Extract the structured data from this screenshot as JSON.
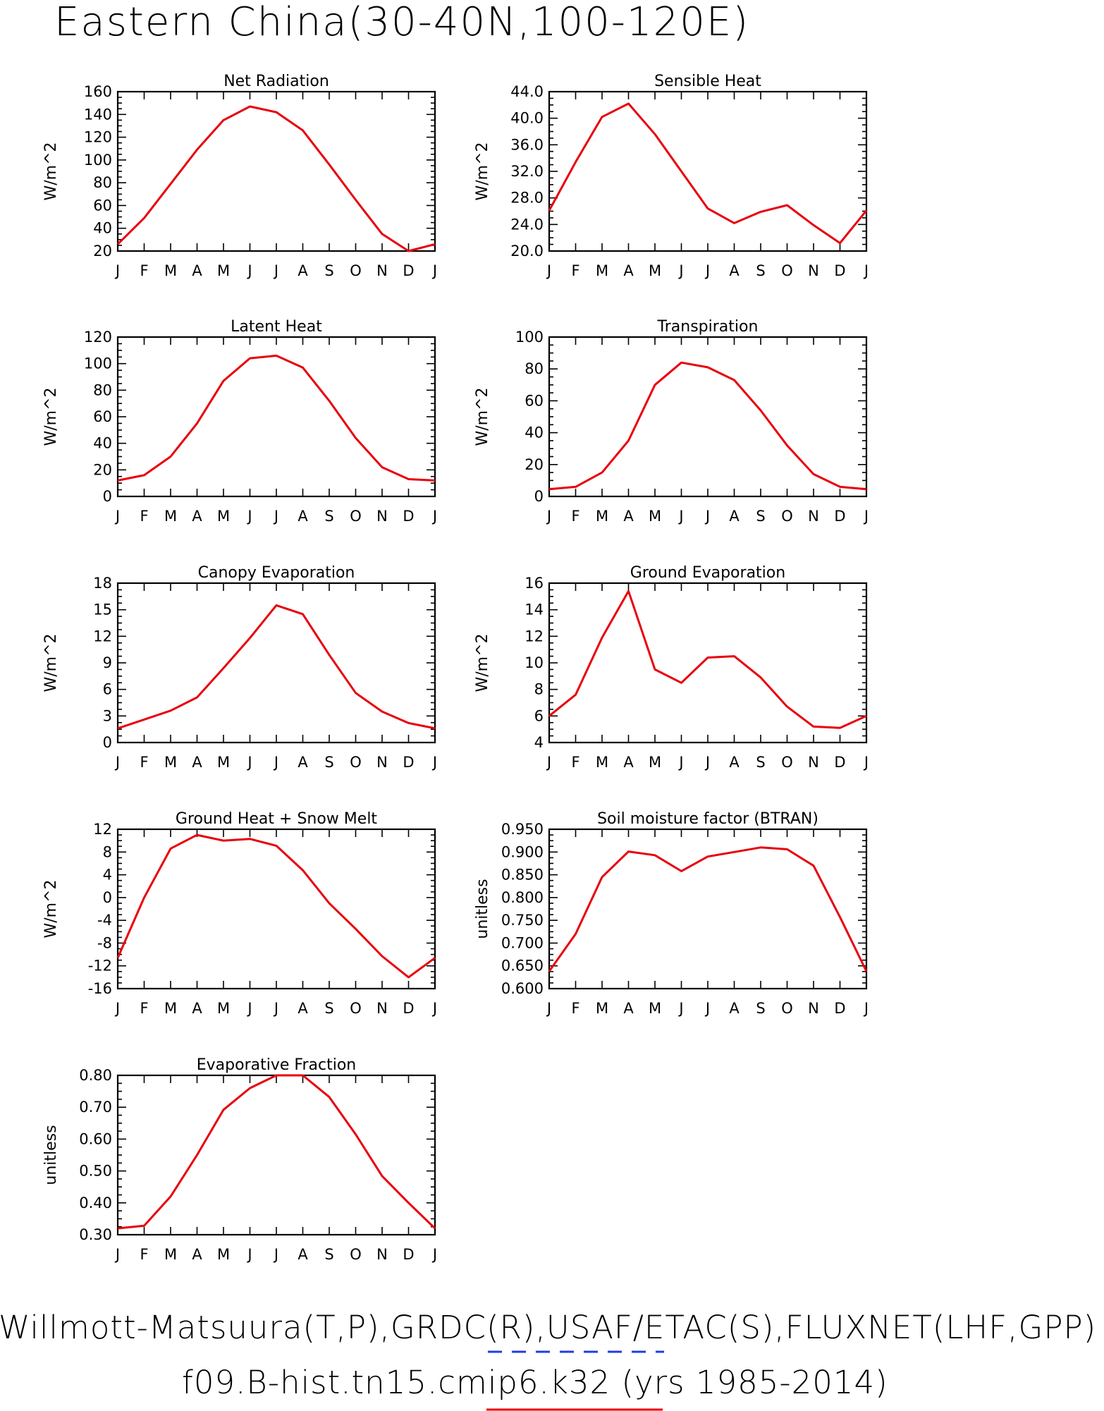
{
  "figure": {
    "title": "Eastern China(30-40N,100-120E)",
    "footer_line1": "Willmott-Matsuura(T,P),GRDC(R),USAF/ETAC(S),FLUXNET(LHF,GPP)",
    "footer_line2": "f09.B-hist.tn15.cmip6.k32 (yrs 1985-2014)",
    "colors": {
      "series": "#e8000b",
      "legend_dash": "#1f3fe0",
      "legend_line": "#e8000b"
    }
  },
  "chart_data": [
    {
      "type": "line",
      "title": "Net Radiation",
      "xlabel": "",
      "ylabel": "W/m^2",
      "categories": [
        "J",
        "F",
        "M",
        "A",
        "M",
        "J",
        "J",
        "A",
        "S",
        "O",
        "N",
        "D",
        "J"
      ],
      "ylim": [
        20,
        160
      ],
      "yticks": [
        20,
        40,
        60,
        80,
        100,
        120,
        140,
        160
      ],
      "ytick_labels": [
        "20",
        "40",
        "60",
        "80",
        "100",
        "120",
        "140",
        "160"
      ],
      "series": [
        {
          "values": [
            26,
            49,
            79,
            109,
            135,
            147,
            142,
            126,
            96,
            65,
            35,
            20,
            26
          ]
        }
      ]
    },
    {
      "type": "line",
      "title": "Sensible Heat",
      "xlabel": "",
      "ylabel": "W/m^2",
      "categories": [
        "J",
        "F",
        "M",
        "A",
        "M",
        "J",
        "J",
        "A",
        "S",
        "O",
        "N",
        "D",
        "J"
      ],
      "ylim": [
        20,
        44
      ],
      "yticks": [
        20,
        24,
        28,
        32,
        36,
        40,
        44
      ],
      "ytick_labels": [
        "20.0",
        "24.0",
        "28.0",
        "32.0",
        "36.0",
        "40.0",
        "44.0"
      ],
      "series": [
        {
          "values": [
            26.1,
            33.4,
            40.2,
            42.2,
            37.6,
            32.0,
            26.4,
            24.2,
            25.9,
            26.9,
            23.9,
            21.2,
            26.1
          ]
        }
      ]
    },
    {
      "type": "line",
      "title": "Latent Heat",
      "xlabel": "",
      "ylabel": "W/m^2",
      "categories": [
        "J",
        "F",
        "M",
        "A",
        "M",
        "J",
        "J",
        "A",
        "S",
        "O",
        "N",
        "D",
        "J"
      ],
      "ylim": [
        0,
        120
      ],
      "yticks": [
        0,
        20,
        40,
        60,
        80,
        100,
        120
      ],
      "ytick_labels": [
        "0",
        "20",
        "40",
        "60",
        "80",
        "100",
        "120"
      ],
      "series": [
        {
          "values": [
            12,
            16,
            30,
            55,
            87,
            104,
            106,
            97,
            72,
            44,
            22,
            13,
            12
          ]
        }
      ]
    },
    {
      "type": "line",
      "title": "Transpiration",
      "xlabel": "",
      "ylabel": "W/m^2",
      "categories": [
        "J",
        "F",
        "M",
        "A",
        "M",
        "J",
        "J",
        "A",
        "S",
        "O",
        "N",
        "D",
        "J"
      ],
      "ylim": [
        0,
        100
      ],
      "yticks": [
        0,
        20,
        40,
        60,
        80,
        100
      ],
      "ytick_labels": [
        "0",
        "20",
        "40",
        "60",
        "80",
        "100"
      ],
      "series": [
        {
          "values": [
            4.5,
            6,
            15,
            35,
            70,
            84,
            81,
            73,
            54,
            32,
            14,
            6,
            4.5
          ]
        }
      ]
    },
    {
      "type": "line",
      "title": "Canopy Evaporation",
      "xlabel": "",
      "ylabel": "W/m^2",
      "categories": [
        "J",
        "F",
        "M",
        "A",
        "M",
        "J",
        "J",
        "A",
        "S",
        "O",
        "N",
        "D",
        "J"
      ],
      "ylim": [
        0,
        18
      ],
      "yticks": [
        0,
        3,
        6,
        9,
        12,
        15,
        18
      ],
      "ytick_labels": [
        "0",
        "3",
        "6",
        "9",
        "12",
        "15",
        "18"
      ],
      "series": [
        {
          "values": [
            1.6,
            2.6,
            3.6,
            5.1,
            8.4,
            11.8,
            15.5,
            14.5,
            9.9,
            5.6,
            3.5,
            2.2,
            1.6
          ]
        }
      ]
    },
    {
      "type": "line",
      "title": "Ground Evaporation",
      "xlabel": "",
      "ylabel": "W/m^2",
      "categories": [
        "J",
        "F",
        "M",
        "A",
        "M",
        "J",
        "J",
        "A",
        "S",
        "O",
        "N",
        "D",
        "J"
      ],
      "ylim": [
        4,
        16
      ],
      "yticks": [
        4,
        6,
        8,
        10,
        12,
        14,
        16
      ],
      "ytick_labels": [
        "4",
        "6",
        "8",
        "10",
        "12",
        "14",
        "16"
      ],
      "series": [
        {
          "values": [
            6.0,
            7.6,
            11.9,
            15.4,
            9.5,
            8.5,
            10.4,
            10.5,
            8.9,
            6.7,
            5.2,
            5.1,
            6.0
          ]
        }
      ]
    },
    {
      "type": "line",
      "title": "Ground Heat + Snow Melt",
      "xlabel": "",
      "ylabel": "W/m^2",
      "categories": [
        "J",
        "F",
        "M",
        "A",
        "M",
        "J",
        "J",
        "A",
        "S",
        "O",
        "N",
        "D",
        "J"
      ],
      "ylim": [
        -16,
        12
      ],
      "yticks": [
        -16,
        -12,
        -8,
        -4,
        0,
        4,
        8,
        12
      ],
      "ytick_labels": [
        "-16",
        "-12",
        "-8",
        "-4",
        "0",
        "4",
        "8",
        "12"
      ],
      "series": [
        {
          "values": [
            -10.6,
            0,
            8.6,
            11,
            10,
            10.3,
            9.1,
            4.8,
            -1,
            -5.5,
            -10.3,
            -14,
            -10.6
          ]
        }
      ]
    },
    {
      "type": "line",
      "title": "Soil moisture factor (BTRAN)",
      "xlabel": "",
      "ylabel": "unitless",
      "categories": [
        "J",
        "F",
        "M",
        "A",
        "M",
        "J",
        "J",
        "A",
        "S",
        "O",
        "N",
        "D",
        "J"
      ],
      "ylim": [
        0.6,
        0.95
      ],
      "yticks": [
        0.6,
        0.65,
        0.7,
        0.75,
        0.8,
        0.85,
        0.9,
        0.95
      ],
      "ytick_labels": [
        "0.600",
        "0.650",
        "0.700",
        "0.750",
        "0.800",
        "0.850",
        "0.900",
        "0.950"
      ],
      "series": [
        {
          "values": [
            0.638,
            0.72,
            0.845,
            0.901,
            0.893,
            0.858,
            0.89,
            0.9,
            0.91,
            0.906,
            0.87,
            0.757,
            0.638
          ]
        }
      ]
    },
    {
      "type": "line",
      "title": "Evaporative Fraction",
      "xlabel": "",
      "ylabel": "unitless",
      "categories": [
        "J",
        "F",
        "M",
        "A",
        "M",
        "J",
        "J",
        "A",
        "S",
        "O",
        "N",
        "D",
        "J"
      ],
      "ylim": [
        0.3,
        0.8
      ],
      "yticks": [
        0.3,
        0.4,
        0.5,
        0.6,
        0.7,
        0.8
      ],
      "ytick_labels": [
        "0.30",
        "0.40",
        "0.50",
        "0.60",
        "0.70",
        "0.80"
      ],
      "series": [
        {
          "values": [
            0.32,
            0.328,
            0.42,
            0.55,
            0.692,
            0.76,
            0.8,
            0.8,
            0.732,
            0.615,
            0.484,
            0.4,
            0.32
          ]
        }
      ]
    }
  ]
}
